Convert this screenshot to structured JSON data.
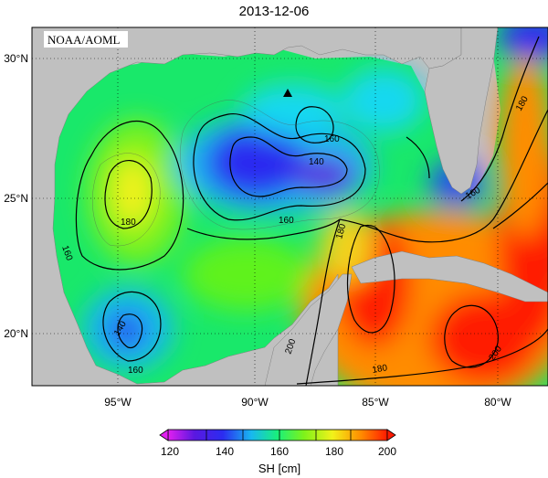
{
  "title": "2013-12-06",
  "credit": "NOAA/AOML",
  "axes": {
    "x_ticks": [
      "95°W",
      "90°W",
      "85°W",
      "80°W"
    ],
    "y_ticks": [
      "30°N",
      "25°N",
      "20°N"
    ]
  },
  "contours": {
    "labels": [
      "160",
      "140",
      "180",
      "160",
      "140",
      "160",
      "180",
      "160",
      "180",
      "160",
      "200",
      "200",
      "180"
    ]
  },
  "colorbar": {
    "ticks": [
      "120",
      "140",
      "160",
      "180",
      "200"
    ],
    "label": "SH [cm]"
  },
  "marker": {
    "shape": "triangle",
    "color": "#000000"
  },
  "colors": {
    "land": "#c0c0c0",
    "low": "#3b1ddb",
    "mid": "#19f04b",
    "high": "#ff1a00"
  }
}
